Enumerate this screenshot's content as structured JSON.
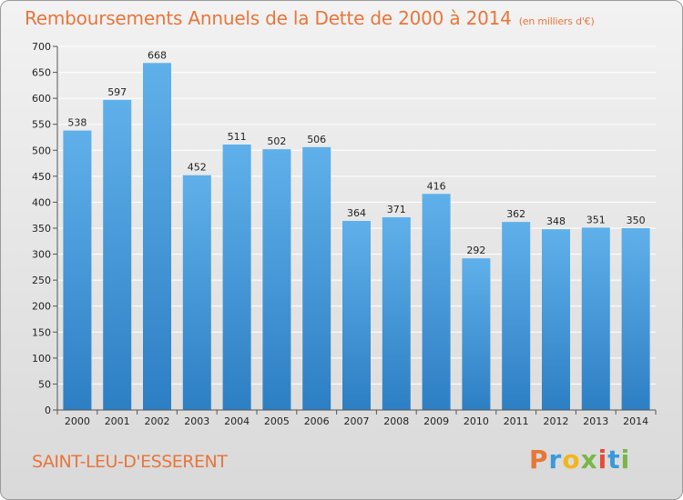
{
  "header": {
    "title": "Remboursements Annuels de la Dette de 2000 à 2014",
    "subtitle": "(en milliers d'€)"
  },
  "footer": {
    "city": "SAINT-LEU-D'ESSERENT",
    "logo": "Proxiti",
    "logo_colors": [
      "#e8763a",
      "#3a9ad9",
      "#f2b61c",
      "#7ab648",
      "#e84a3a",
      "#3a9ad9",
      "#7ab648"
    ]
  },
  "chart_data": {
    "type": "bar",
    "title": "Remboursements Annuels de la Dette de 2000 à 2014",
    "categories": [
      "2000",
      "2001",
      "2002",
      "2003",
      "2004",
      "2005",
      "2006",
      "2007",
      "2008",
      "2009",
      "2010",
      "2011",
      "2012",
      "2013",
      "2014"
    ],
    "values": [
      538,
      597,
      668,
      452,
      511,
      502,
      506,
      364,
      371,
      416,
      292,
      362,
      348,
      351,
      350
    ],
    "ylim": [
      0,
      700
    ],
    "yticks": [
      0,
      50,
      100,
      150,
      200,
      250,
      300,
      350,
      400,
      450,
      500,
      550,
      600,
      650,
      700
    ],
    "grid": true,
    "bar_color": "#4b9fe0"
  }
}
